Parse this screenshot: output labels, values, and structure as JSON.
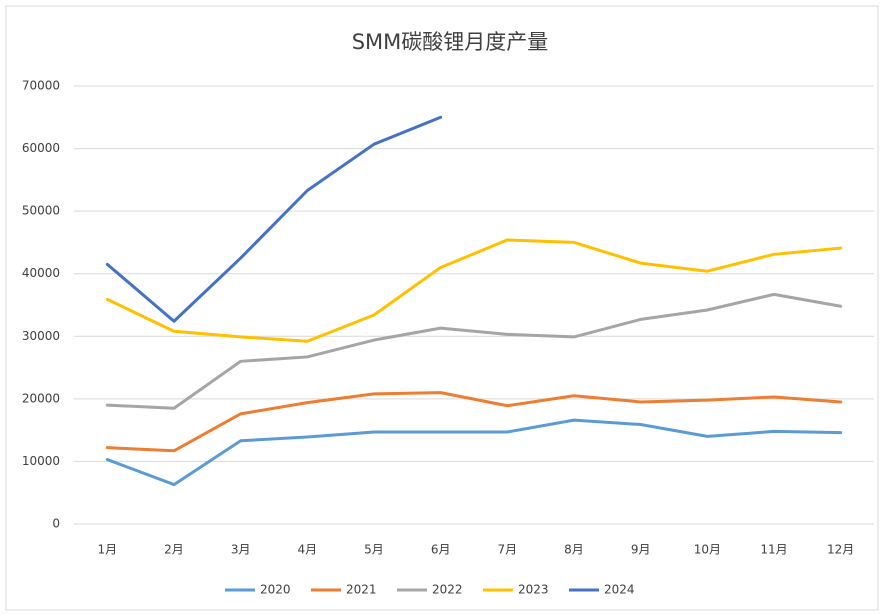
{
  "chart_data": {
    "type": "line",
    "title": "SMM碳酸锂月度产量",
    "categories": [
      "1月",
      "2月",
      "3月",
      "4月",
      "5月",
      "6月",
      "7月",
      "8月",
      "9月",
      "10月",
      "11月",
      "12月"
    ],
    "series": [
      {
        "name": "2020",
        "color": "#5b9bd5",
        "values": [
          10300,
          6300,
          13300,
          13900,
          14700,
          14700,
          14700,
          16600,
          15900,
          14000,
          14800,
          14600
        ]
      },
      {
        "name": "2021",
        "color": "#ed7d31",
        "values": [
          12200,
          11700,
          17600,
          19400,
          20800,
          21000,
          18900,
          20500,
          19500,
          19800,
          20300,
          19500
        ]
      },
      {
        "name": "2022",
        "color": "#a5a5a5",
        "values": [
          19000,
          18500,
          26000,
          26700,
          29400,
          31300,
          30300,
          29900,
          32700,
          34200,
          36700,
          34800
        ]
      },
      {
        "name": "2023",
        "color": "#ffc000",
        "values": [
          35900,
          30800,
          29900,
          29200,
          33400,
          41000,
          45400,
          45000,
          41700,
          40400,
          43100,
          44100
        ]
      },
      {
        "name": "2024",
        "color": "#4472c4",
        "values": [
          41500,
          32400,
          42500,
          53300,
          60700,
          65000,
          null,
          null,
          null,
          null,
          null,
          null
        ]
      }
    ],
    "ylim": [
      0,
      70000
    ],
    "yticks": [
      0,
      10000,
      20000,
      30000,
      40000,
      50000,
      60000,
      70000
    ],
    "grid": true,
    "legend": "bottom"
  }
}
